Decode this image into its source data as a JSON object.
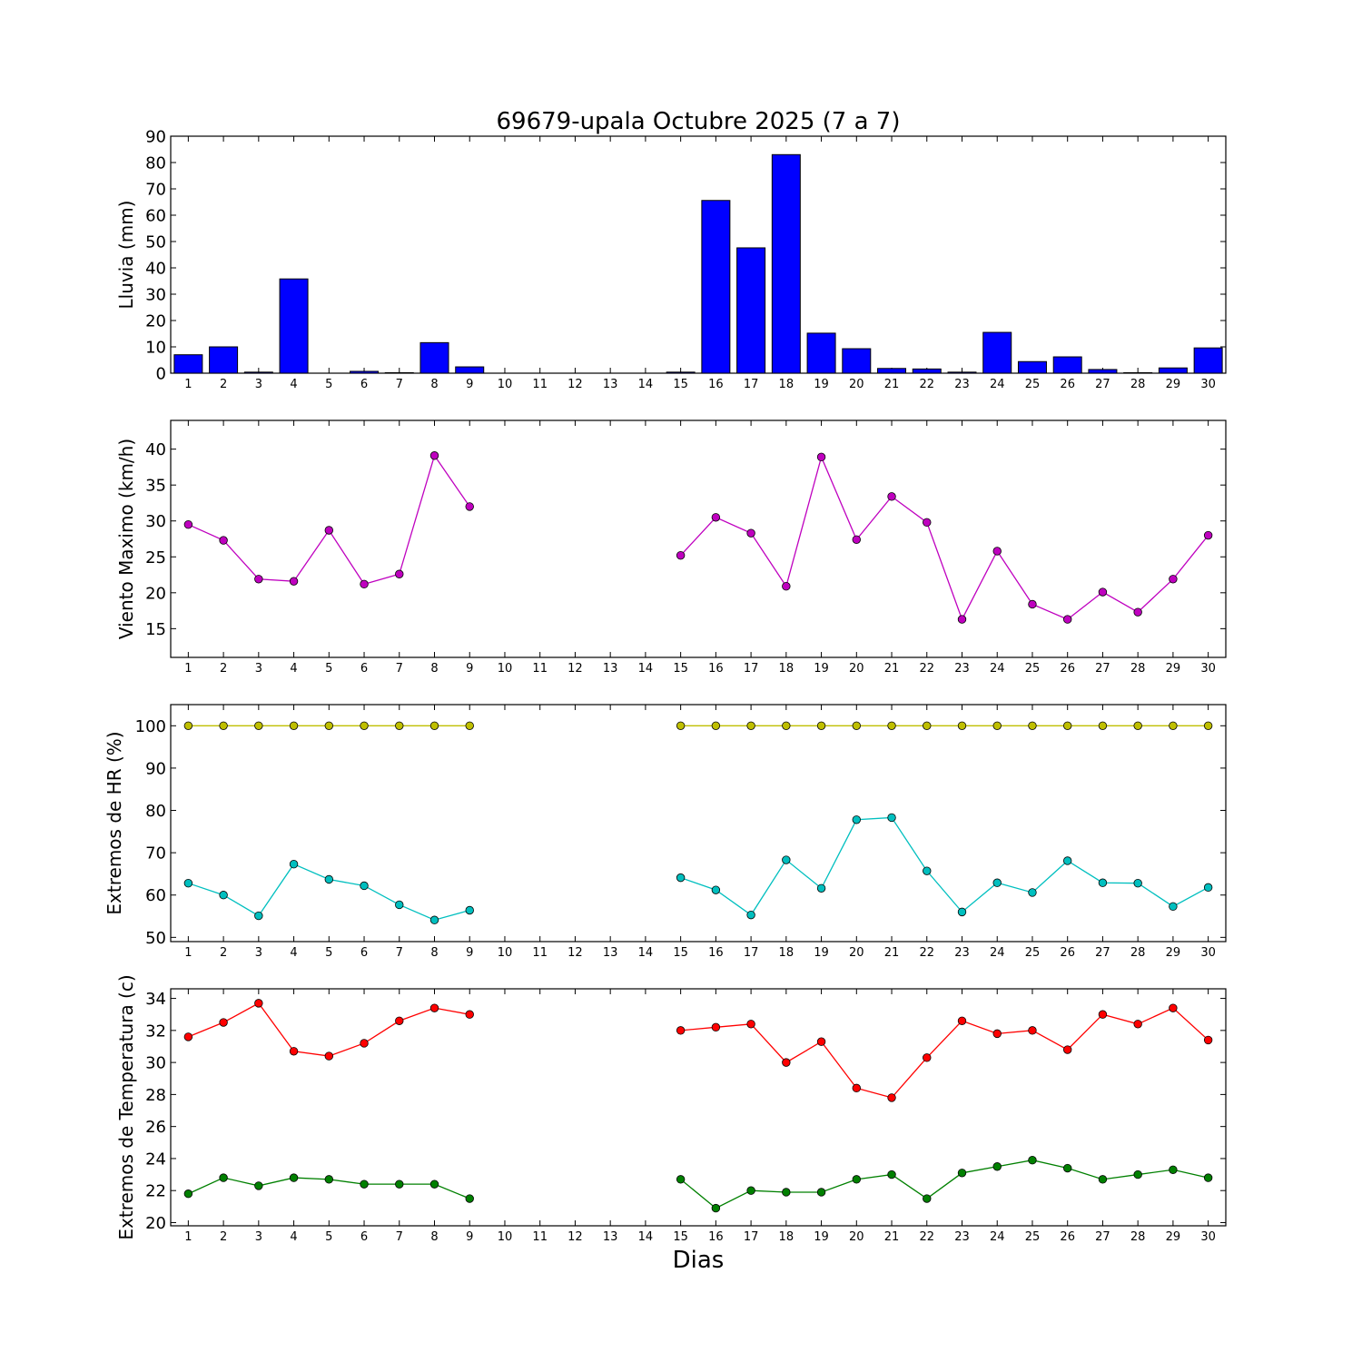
{
  "chart_data": [
    {
      "type": "bar",
      "title": "69679-upala Octubre 2025  (7 a 7)",
      "ylabel": "Lluvia (mm)",
      "ylim": [
        0,
        90
      ],
      "yticks": [
        0,
        10,
        20,
        30,
        40,
        50,
        60,
        70,
        80,
        90
      ],
      "x_tick_labels": [
        "1",
        "2",
        "3",
        "4",
        "5",
        "6",
        "7",
        "8",
        "9",
        "10",
        "11",
        "12",
        "13",
        "14",
        "15",
        "16",
        "17",
        "18",
        "19",
        "20",
        "21",
        "22",
        "23",
        "24",
        "25",
        "26",
        "27",
        "28",
        "29",
        "30"
      ],
      "series": [
        {
          "color": "#0000ff",
          "x": [
            1,
            2,
            3,
            4,
            5,
            6,
            7,
            8,
            9,
            10,
            11,
            12,
            13,
            14,
            15,
            16,
            17,
            18,
            19,
            20,
            21,
            22,
            23,
            24,
            25,
            26,
            27,
            28,
            29,
            30
          ],
          "values": [
            7.0,
            10.0,
            0.4,
            35.8,
            0,
            0.7,
            0.2,
            11.6,
            2.4,
            0,
            0,
            0,
            0,
            0,
            0.4,
            65.6,
            47.6,
            83.0,
            15.2,
            9.3,
            1.8,
            1.6,
            0.4,
            15.5,
            4.4,
            6.2,
            1.4,
            0.2,
            2.0,
            9.6
          ]
        }
      ]
    },
    {
      "type": "line",
      "ylabel": "Viento Maximo (km/h)",
      "ylim": [
        11,
        44
      ],
      "yticks": [
        15,
        20,
        25,
        30,
        35,
        40
      ],
      "x_tick_labels": [
        "1",
        "2",
        "3",
        "4",
        "5",
        "6",
        "7",
        "8",
        "9",
        "10",
        "11",
        "12",
        "13",
        "14",
        "15",
        "16",
        "17",
        "18",
        "19",
        "20",
        "21",
        "22",
        "23",
        "24",
        "25",
        "26",
        "27",
        "28",
        "29",
        "30"
      ],
      "series": [
        {
          "color": "#bf00bf",
          "x": [
            1,
            2,
            3,
            4,
            5,
            6,
            7,
            8,
            9,
            15,
            16,
            17,
            18,
            19,
            20,
            21,
            22,
            23,
            24,
            25,
            26,
            27,
            28,
            29,
            30
          ],
          "values": [
            29.5,
            27.3,
            21.9,
            21.6,
            28.7,
            21.2,
            22.6,
            39.1,
            32.0,
            25.2,
            30.5,
            28.3,
            20.9,
            38.9,
            27.4,
            33.4,
            29.8,
            16.3,
            25.8,
            18.4,
            16.3,
            20.1,
            17.3,
            21.9,
            28.0
          ]
        }
      ]
    },
    {
      "type": "line",
      "ylabel": "Extremos de HR (%)",
      "ylim": [
        49,
        105
      ],
      "yticks": [
        50,
        60,
        70,
        80,
        90,
        100
      ],
      "x_tick_labels": [
        "1",
        "2",
        "3",
        "4",
        "5",
        "6",
        "7",
        "8",
        "9",
        "10",
        "11",
        "12",
        "13",
        "14",
        "15",
        "16",
        "17",
        "18",
        "19",
        "20",
        "21",
        "22",
        "23",
        "24",
        "25",
        "26",
        "27",
        "28",
        "29",
        "30"
      ],
      "series": [
        {
          "color": "#bfbf00",
          "x": [
            1,
            2,
            3,
            4,
            5,
            6,
            7,
            8,
            9,
            15,
            16,
            17,
            18,
            19,
            20,
            21,
            22,
            23,
            24,
            25,
            26,
            27,
            28,
            29,
            30
          ],
          "values": [
            100,
            100,
            100,
            100,
            100,
            100,
            100,
            100,
            100,
            100,
            100,
            100,
            100,
            100,
            100,
            100,
            100,
            100,
            100,
            100,
            100,
            100,
            100,
            100,
            100
          ]
        },
        {
          "color": "#00bfbf",
          "x": [
            1,
            2,
            3,
            4,
            5,
            6,
            7,
            8,
            9,
            15,
            16,
            17,
            18,
            19,
            20,
            21,
            22,
            23,
            24,
            25,
            26,
            27,
            28,
            29,
            30
          ],
          "values": [
            62.8,
            60.0,
            55.1,
            67.3,
            63.7,
            62.2,
            57.7,
            54.1,
            56.4,
            64.1,
            61.2,
            55.3,
            68.3,
            61.6,
            77.8,
            78.3,
            65.7,
            56.0,
            62.9,
            60.6,
            68.1,
            62.9,
            62.8,
            57.3,
            61.8
          ]
        }
      ]
    },
    {
      "type": "line",
      "ylabel": "Extremos de Temperatura (c)",
      "xlabel": "Dias",
      "ylim": [
        19.8,
        34.6
      ],
      "yticks": [
        20,
        22,
        24,
        26,
        28,
        30,
        32,
        34
      ],
      "x_tick_labels": [
        "1",
        "2",
        "3",
        "4",
        "5",
        "6",
        "7",
        "8",
        "9",
        "10",
        "11",
        "12",
        "13",
        "14",
        "15",
        "16",
        "17",
        "18",
        "19",
        "20",
        "21",
        "22",
        "23",
        "24",
        "25",
        "26",
        "27",
        "28",
        "29",
        "30"
      ],
      "series": [
        {
          "color": "#ff0000",
          "x": [
            1,
            2,
            3,
            4,
            5,
            6,
            7,
            8,
            9,
            15,
            16,
            17,
            18,
            19,
            20,
            21,
            22,
            23,
            24,
            25,
            26,
            27,
            28,
            29,
            30
          ],
          "values": [
            31.6,
            32.5,
            33.7,
            30.7,
            30.4,
            31.2,
            32.6,
            33.4,
            33.0,
            32.0,
            32.2,
            32.4,
            30.0,
            31.3,
            28.4,
            27.8,
            30.3,
            32.6,
            31.8,
            32.0,
            30.8,
            33.0,
            32.4,
            33.4,
            31.4
          ]
        },
        {
          "color": "#008000",
          "x": [
            1,
            2,
            3,
            4,
            5,
            6,
            7,
            8,
            9,
            15,
            16,
            17,
            18,
            19,
            20,
            21,
            22,
            23,
            24,
            25,
            26,
            27,
            28,
            29,
            30
          ],
          "values": [
            21.8,
            22.8,
            22.3,
            22.8,
            22.7,
            22.4,
            22.4,
            22.4,
            21.5,
            22.7,
            20.9,
            22.0,
            21.9,
            21.9,
            22.7,
            23.0,
            21.5,
            23.1,
            23.5,
            23.9,
            23.4,
            22.7,
            23.0,
            23.3,
            22.8
          ]
        }
      ]
    }
  ]
}
